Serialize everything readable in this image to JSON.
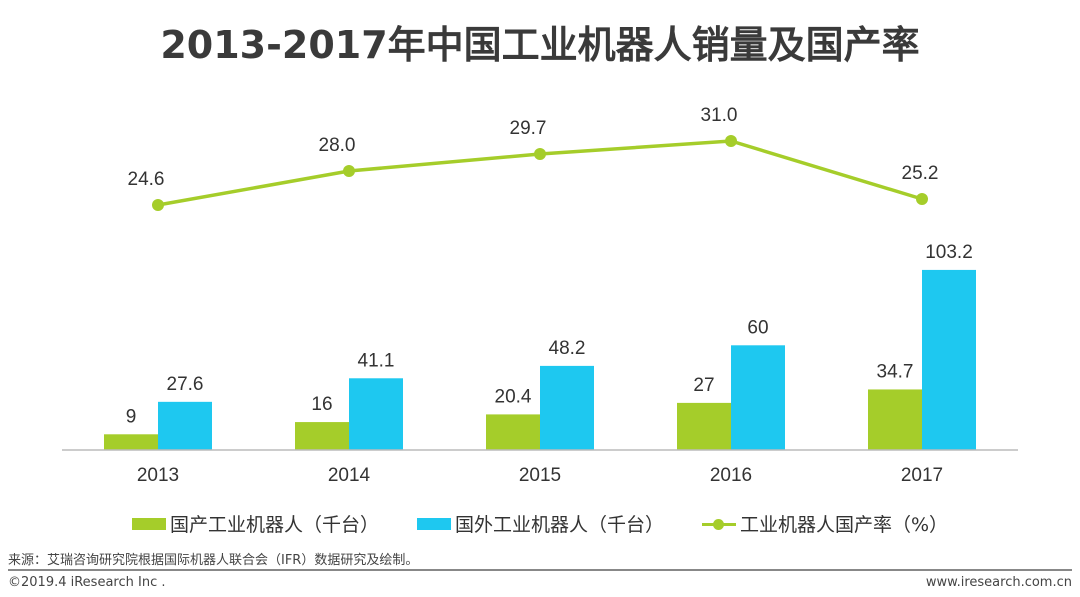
{
  "chart_data": {
    "type": "bar+line",
    "title": "2013-2017年中国工业机器人销量及国产率",
    "categories": [
      "2013",
      "2014",
      "2015",
      "2016",
      "2017"
    ],
    "series": [
      {
        "name": "国产工业机器人（千台）",
        "type": "bar",
        "color": "#a5cd2a",
        "values": [
          9,
          16,
          20.4,
          27,
          34.7
        ],
        "labels": [
          "9",
          "16",
          "20.4",
          "27",
          "34.7"
        ]
      },
      {
        "name": "国外工业机器人（千台）",
        "type": "bar",
        "color": "#1ec8f0",
        "values": [
          27.6,
          41.1,
          48.2,
          60,
          103.2
        ],
        "labels": [
          "27.6",
          "41.1",
          "48.2",
          "60",
          "103.2"
        ]
      },
      {
        "name": "工业机器人国产率（%）",
        "type": "line",
        "color": "#a5cd2a",
        "values": [
          24.6,
          28.0,
          29.7,
          31.0,
          25.2
        ],
        "labels": [
          "24.6",
          "28.0",
          "29.7",
          "31.0",
          "25.2"
        ]
      }
    ],
    "grid": false,
    "legend": "bottom"
  },
  "footer": {
    "source": "来源：艾瑞咨询研究院根据国际机器人联合会（IFR）数据研究及绘制。",
    "copyright": "©2019.4 iResearch Inc .",
    "website": "www.iresearch.com.cn"
  }
}
